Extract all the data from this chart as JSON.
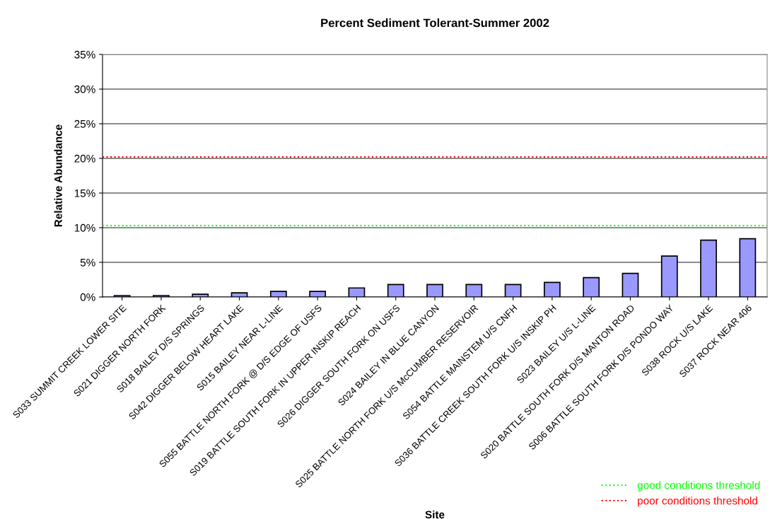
{
  "chart_data": {
    "type": "bar",
    "title": "Percent Sediment Tolerant-Summer 2002",
    "xlabel": "Site",
    "ylabel": "Relative Abundance",
    "categories": [
      "S033 SUMMIT CREEK LOWER SITE",
      "S021 DIGGER NORTH FORK",
      "S018 BAILEY D/S SPRINGS",
      "S042 DIGGER BELOW HEART LAKE",
      "S015 BAILEY NEAR L-LINE",
      "S055 BATTLE NORTH FORK @ D/S EDGE OF USFS",
      "S019 BATTLE SOUTH FORK IN UPPER INSKIP REACH",
      "S026 DIGGER SOUTH FORK ON USFS",
      "S024 BAILEY IN BLUE CANYON",
      "S025 BATTLE NORTH FORK U/S McCUMBER RESERVOIR",
      "S054 BATTLE MAINSTEM U/S CNFH",
      "S036 BATTLE CREEK SOUTH FORK U/S INSKIP PH",
      "S023 BAILEY U/S L-LINE",
      "S020 BATTLE SOUTH FORK D/S MANTON ROAD",
      "S006 BATTLE SOUTH FORK D/S PONDO WAY",
      "S038 ROCK U/S LAKE",
      "S037 ROCK NEAR 406"
    ],
    "values": [
      0.2,
      0.2,
      0.4,
      0.6,
      0.8,
      0.8,
      1.3,
      1.8,
      1.8,
      1.8,
      1.8,
      2.1,
      2.8,
      3.4,
      5.9,
      8.2,
      8.4
    ],
    "color": "#9999ff",
    "ylim": [
      0,
      35
    ],
    "yticks": [
      {
        "value": 0,
        "label": "0%"
      },
      {
        "value": 5,
        "label": "5%"
      },
      {
        "value": 10,
        "label": "10%"
      },
      {
        "value": 15,
        "label": "15%"
      },
      {
        "value": 20,
        "label": "20%"
      },
      {
        "value": 25,
        "label": "25%"
      },
      {
        "value": 30,
        "label": "30%"
      },
      {
        "value": 35,
        "label": "35%"
      }
    ],
    "grid": "y",
    "legend": "bottom right",
    "ref_lines": [
      {
        "axis": "y",
        "value": 10.3,
        "label": "good conditions threshold",
        "color": "#00ff00",
        "line_style": "dotted"
      },
      {
        "axis": "y",
        "value": 20.2,
        "label": "poor conditions threshold",
        "color": "#ff0000",
        "line_style": "dotted"
      }
    ]
  }
}
